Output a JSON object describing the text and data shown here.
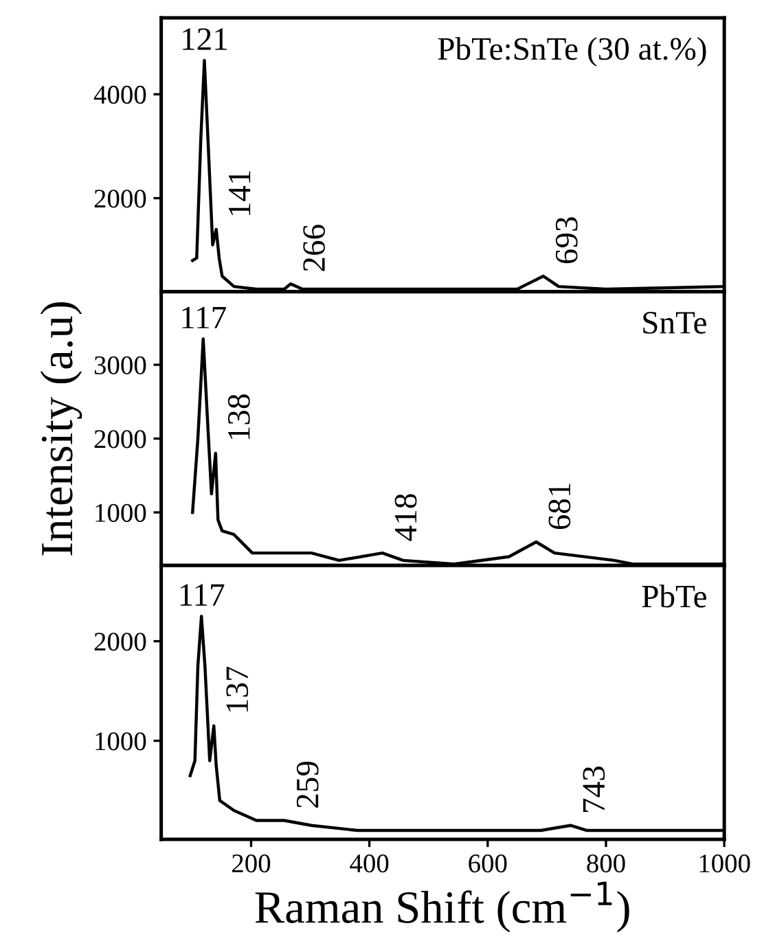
{
  "chart_data": [
    {
      "type": "line",
      "title": "PbTe:SnTe (30 at.%)",
      "xlim": [
        48,
        1000
      ],
      "ylim": [
        200,
        5470
      ],
      "yticks": [
        2000,
        4000
      ],
      "tick_labels": "y",
      "grid": false,
      "marker": "none",
      "line_style": "solid",
      "series": [
        {
          "color": "#000000",
          "x": [
            101,
            108,
            115,
            121,
            127,
            135,
            141,
            146,
            151,
            171,
            209,
            256,
            267,
            287,
            341,
            500,
            600,
            650,
            694,
            720,
            800,
            1000
          ],
          "values": [
            800,
            850,
            3150,
            4650,
            3150,
            1100,
            1400,
            850,
            500,
            300,
            250,
            250,
            350,
            250,
            250,
            250,
            250,
            250,
            500,
            300,
            250,
            300
          ]
        }
      ],
      "annotations": [
        {
          "text": "121",
          "x": 121,
          "y": 4650
        },
        {
          "text": "141",
          "x": 141,
          "y": 1400
        },
        {
          "text": "266",
          "x": 267,
          "y": 350
        },
        {
          "text": "693",
          "x": 694,
          "y": 500
        }
      ]
    },
    {
      "type": "line",
      "title": "SnTe",
      "ylabel": "Intensity (a.u)",
      "xlim": [
        48,
        1000
      ],
      "ylim": [
        280,
        3990
      ],
      "yticks": [
        1000,
        2000,
        3000
      ],
      "tick_labels": "y",
      "grid": false,
      "marker": "none",
      "line_style": "solid",
      "series": [
        {
          "color": "#000000",
          "x": [
            101,
            110,
            119,
            128,
            133,
            140,
            144,
            151,
            171,
            202,
            302,
            349,
            422,
            457,
            543,
            636,
            682,
            713,
            814,
            845,
            1000
          ],
          "values": [
            1000,
            2000,
            3350,
            2000,
            1250,
            1800,
            900,
            750,
            700,
            450,
            450,
            350,
            450,
            350,
            300,
            400,
            600,
            450,
            350,
            300,
            300
          ]
        }
      ],
      "annotations": [
        {
          "text": "117",
          "x": 119,
          "y": 3350
        },
        {
          "text": "138",
          "x": 140,
          "y": 1800
        },
        {
          "text": "418",
          "x": 422,
          "y": 450
        },
        {
          "text": "681",
          "x": 682,
          "y": 600
        }
      ]
    },
    {
      "type": "line",
      "title": "PbTe",
      "xlabel": "Raman Shift (cm$^{−1}$)",
      "xlim": [
        48,
        1000
      ],
      "ylim": [
        10,
        2760
      ],
      "xticks": [
        200,
        400,
        600,
        800,
        1000
      ],
      "yticks": [
        1000,
        2000
      ],
      "grid": false,
      "marker": "none",
      "line_style": "solid",
      "series": [
        {
          "color": "#000000",
          "x": [
            97,
            105,
            110,
            116,
            122,
            130,
            137,
            141,
            147,
            171,
            209,
            256,
            302,
            380,
            535,
            690,
            740,
            767,
            1000
          ],
          "values": [
            650,
            800,
            1750,
            2250,
            1750,
            800,
            1150,
            750,
            400,
            300,
            200,
            200,
            150,
            100,
            100,
            100,
            150,
            100,
            100
          ]
        }
      ],
      "annotations": [
        {
          "text": "117",
          "x": 116,
          "y": 2250
        },
        {
          "text": "137",
          "x": 137,
          "y": 1150
        },
        {
          "text": "259",
          "x": 256,
          "y": 200
        },
        {
          "text": "743",
          "x": 740,
          "y": 150
        }
      ]
    }
  ]
}
